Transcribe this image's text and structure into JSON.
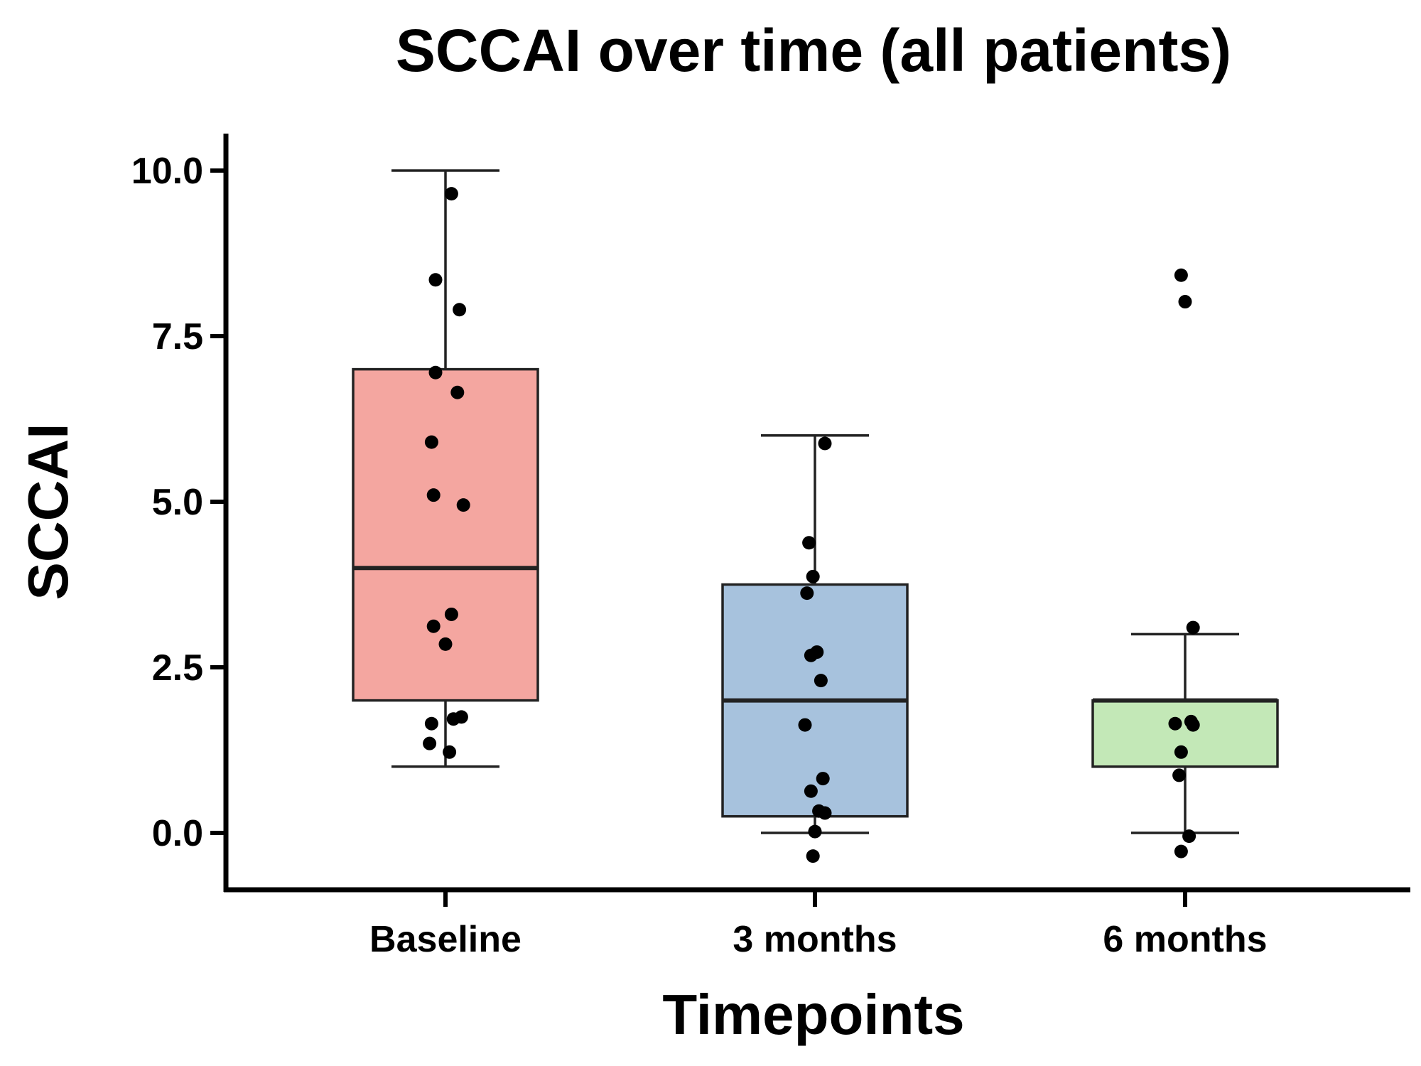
{
  "chart_data": {
    "type": "box",
    "title": "SCCAI over time (all patients)",
    "xlabel": "Timepoints",
    "ylabel": "SCCAI",
    "ylim": [
      -0.8,
      10.55
    ],
    "yticks": [
      0.0,
      2.5,
      5.0,
      7.5,
      10.0
    ],
    "ytick_labels": [
      "0.0",
      "2.5",
      "5.0",
      "7.5",
      "10.0"
    ],
    "grid": false,
    "categories": [
      "Baseline",
      "3 months",
      "6 months"
    ],
    "series": [
      {
        "category": "Baseline",
        "color": "#f4a6a0",
        "whisker_low": 1.0,
        "q1": 2.0,
        "median": 4.0,
        "q3": 7.0,
        "whisker_high": 10.0,
        "points": [
          {
            "x": 0.03,
            "y": 9.65
          },
          {
            "x": -0.05,
            "y": 8.35
          },
          {
            "x": 0.07,
            "y": 7.9
          },
          {
            "x": -0.05,
            "y": 6.95
          },
          {
            "x": 0.06,
            "y": 6.65
          },
          {
            "x": -0.07,
            "y": 5.9
          },
          {
            "x": -0.06,
            "y": 5.1
          },
          {
            "x": 0.09,
            "y": 4.95
          },
          {
            "x": 0.03,
            "y": 3.3
          },
          {
            "x": -0.06,
            "y": 3.12
          },
          {
            "x": 0.0,
            "y": 2.85
          },
          {
            "x": -0.07,
            "y": 1.65
          },
          {
            "x": 0.04,
            "y": 1.72
          },
          {
            "x": 0.08,
            "y": 1.75
          },
          {
            "x": -0.08,
            "y": 1.35
          },
          {
            "x": 0.02,
            "y": 1.22
          }
        ]
      },
      {
        "category": "3 months",
        "color": "#a7c2dd",
        "whisker_low": 0.0,
        "q1": 0.25,
        "median": 2.0,
        "q3": 3.75,
        "whisker_high": 6.0,
        "points": [
          {
            "x": 0.05,
            "y": 5.88
          },
          {
            "x": -0.03,
            "y": 4.38
          },
          {
            "x": -0.01,
            "y": 3.87
          },
          {
            "x": -0.04,
            "y": 3.62
          },
          {
            "x": -0.02,
            "y": 2.68
          },
          {
            "x": 0.01,
            "y": 2.73
          },
          {
            "x": 0.03,
            "y": 2.3
          },
          {
            "x": -0.05,
            "y": 1.63
          },
          {
            "x": 0.04,
            "y": 0.82
          },
          {
            "x": -0.02,
            "y": 0.63
          },
          {
            "x": 0.02,
            "y": 0.33
          },
          {
            "x": 0.05,
            "y": 0.3
          },
          {
            "x": 0.0,
            "y": 0.02
          },
          {
            "x": -0.01,
            "y": -0.35
          }
        ]
      },
      {
        "category": "6 months",
        "color": "#c3e8b7",
        "whisker_low": 0.0,
        "q1": 1.0,
        "median": 2.0,
        "q3": 2.0,
        "whisker_high": 3.0,
        "points": [
          {
            "x": -0.02,
            "y": 8.42
          },
          {
            "x": 0.0,
            "y": 8.02
          },
          {
            "x": 0.04,
            "y": 3.1
          },
          {
            "x": -0.05,
            "y": 1.65
          },
          {
            "x": 0.03,
            "y": 1.68
          },
          {
            "x": 0.04,
            "y": 1.63
          },
          {
            "x": -0.02,
            "y": 1.22
          },
          {
            "x": -0.03,
            "y": 0.87
          },
          {
            "x": 0.02,
            "y": -0.05
          },
          {
            "x": -0.02,
            "y": -0.28
          }
        ]
      }
    ]
  }
}
